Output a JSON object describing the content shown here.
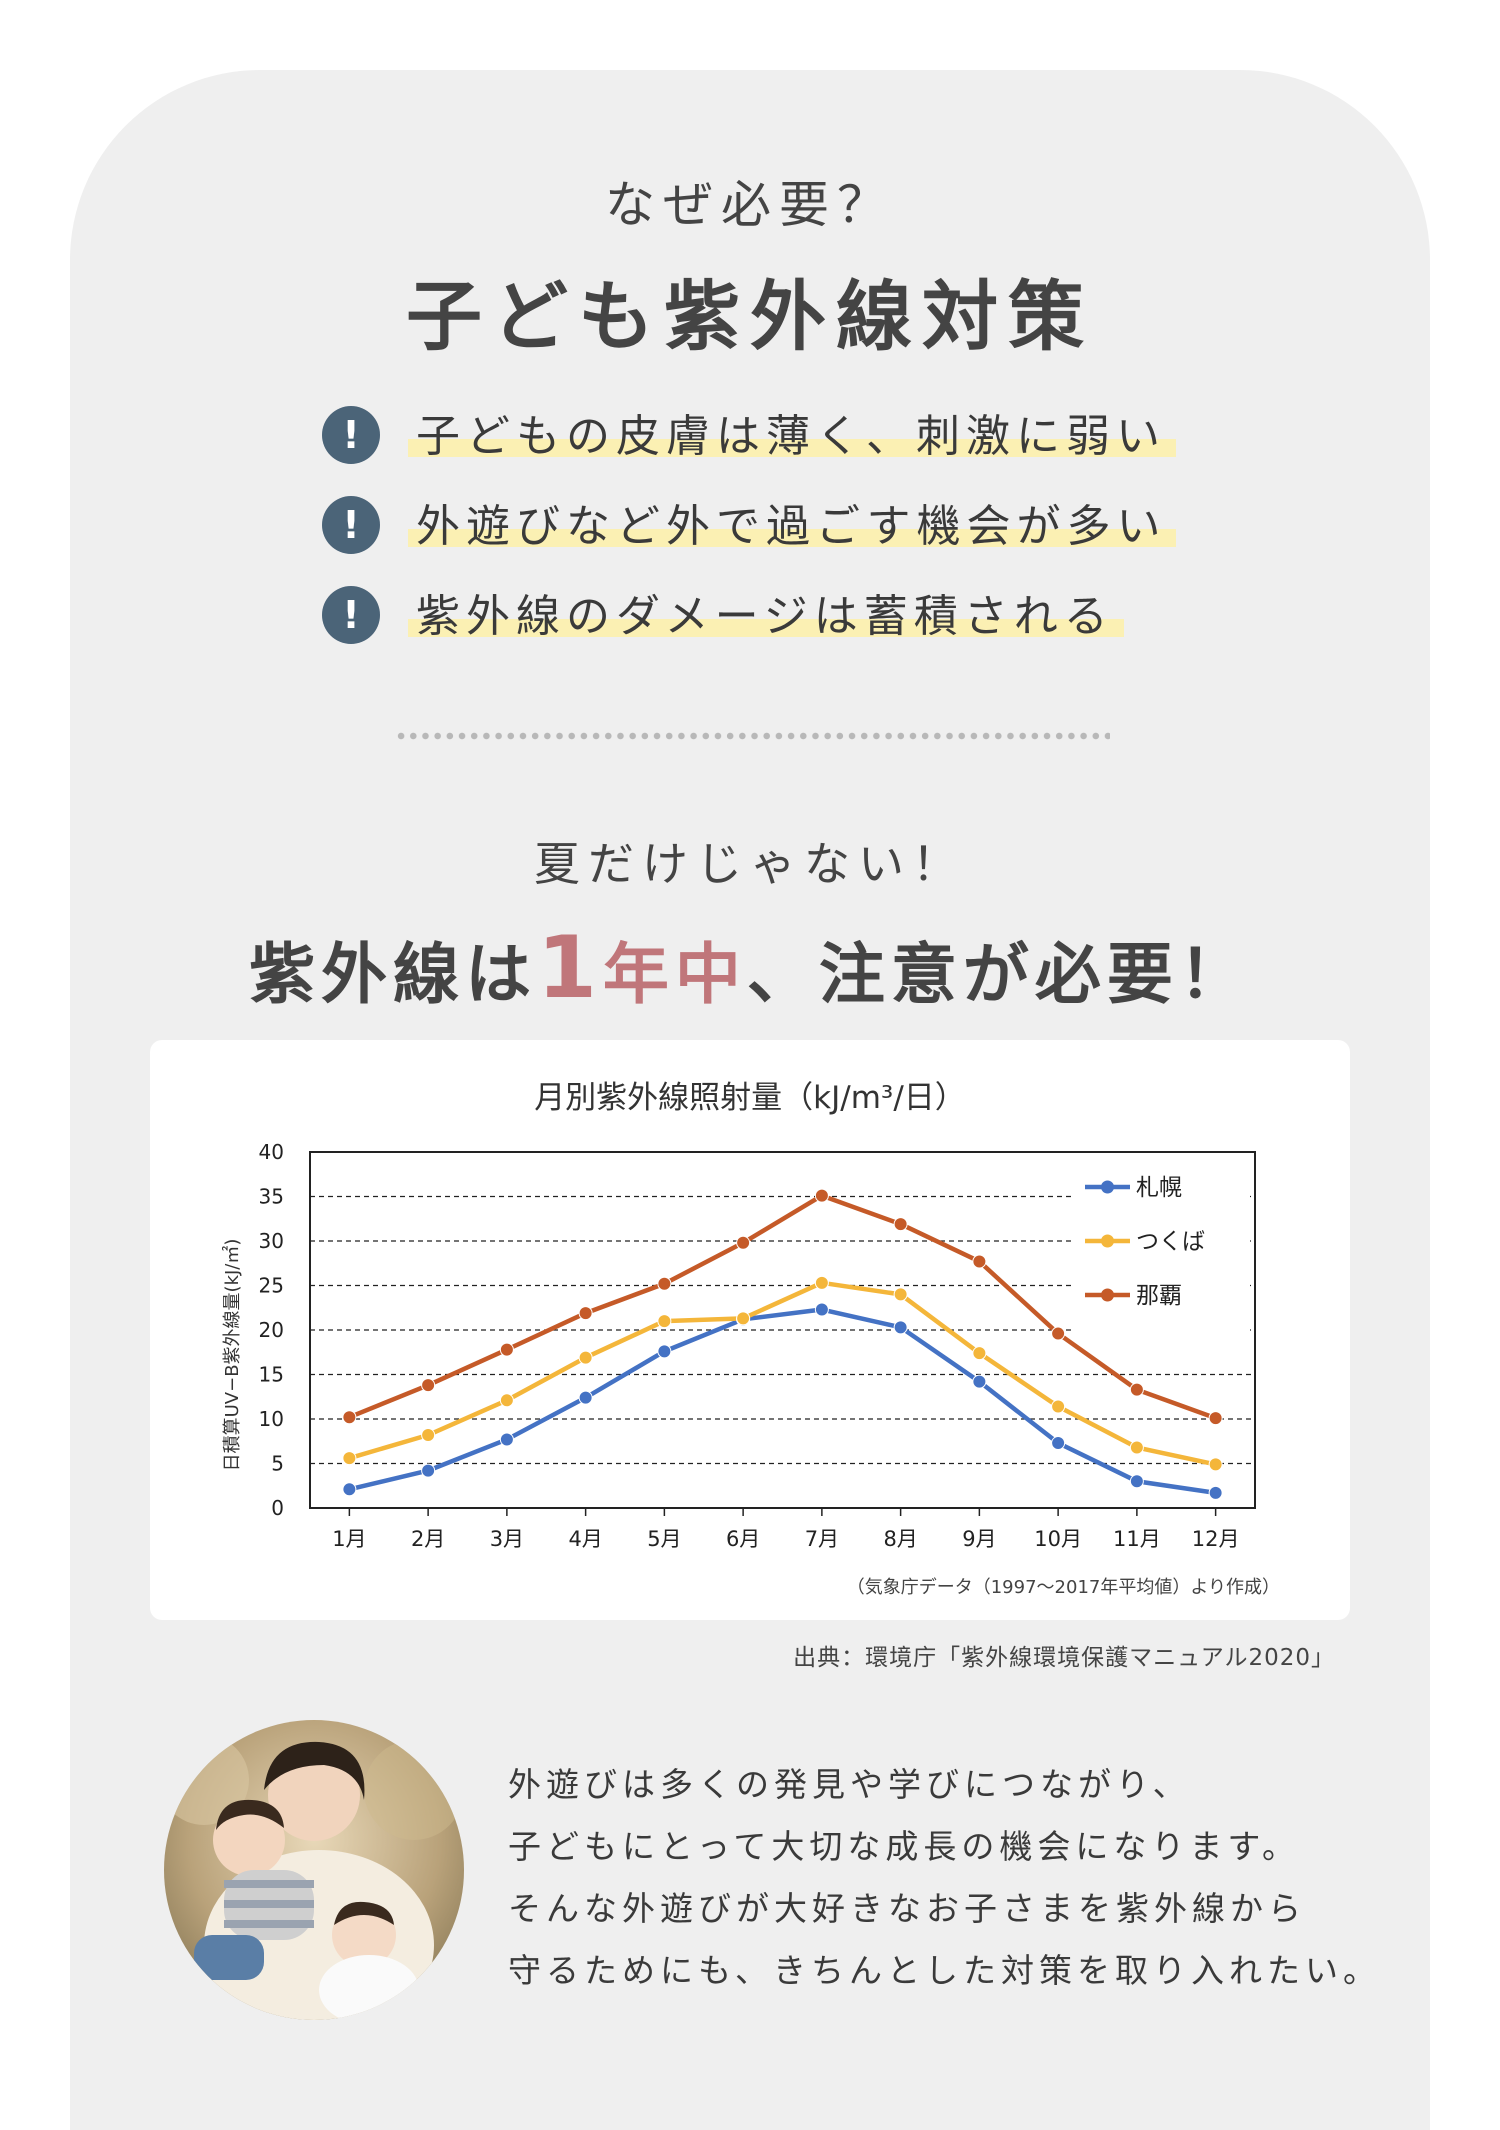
{
  "header": {
    "eyebrow": "なぜ必要？",
    "title": "子ども紫外線対策"
  },
  "points": [
    {
      "icon": "exclamation-icon",
      "text": "子どもの皮膚は薄く、刺激に弱い"
    },
    {
      "icon": "exclamation-icon",
      "text": "外遊びなど外で過ごす機会が多い"
    },
    {
      "icon": "exclamation-icon",
      "text": "紫外線のダメージは蓄積される"
    }
  ],
  "section2": {
    "eyebrow": "夏だけじゃない！",
    "title_pre": "紫外線は",
    "title_num": "1",
    "title_accent": "年中",
    "title_post": "、注意が必要！",
    "accent_color": "#c0767a"
  },
  "chart_data": {
    "type": "line",
    "title": "月別紫外線照射量（kJ/m³/日）",
    "ylabel": "日積算UV−B紫外線量(kJ/㎡)",
    "xlabel": "",
    "categories": [
      "1月",
      "2月",
      "3月",
      "4月",
      "5月",
      "6月",
      "7月",
      "8月",
      "9月",
      "10月",
      "11月",
      "12月"
    ],
    "ylim": [
      0,
      40
    ],
    "yticks": [
      0,
      5,
      10,
      15,
      20,
      25,
      30,
      35,
      40
    ],
    "grid": true,
    "legend": "top-right",
    "series": [
      {
        "name": "札幌",
        "color": "#4472c4",
        "values": [
          2.1,
          4.2,
          7.7,
          12.4,
          17.6,
          21.2,
          22.3,
          20.3,
          14.2,
          7.3,
          3.0,
          1.7
        ]
      },
      {
        "name": "つくば",
        "color": "#f4b63a",
        "values": [
          5.6,
          8.2,
          12.1,
          16.9,
          21.0,
          21.3,
          25.3,
          24.0,
          17.4,
          11.4,
          6.8,
          4.9
        ]
      },
      {
        "name": "那覇",
        "color": "#c55a28",
        "values": [
          10.2,
          13.8,
          17.8,
          21.9,
          25.2,
          29.8,
          35.1,
          31.9,
          27.7,
          19.6,
          13.3,
          10.1
        ]
      }
    ],
    "note": "（気象庁データ（1997～2017年平均値）より作成）"
  },
  "source": "出典：環境庁「紫外線環境保護マニュアル2020」",
  "body_lines": [
    "外遊びは多くの発見や学びにつながり、",
    "子どもにとって大切な成長の機会になります。",
    "そんな外遊びが大好きなお子さまを紫外線から",
    "守るためにも、きちんとした対策を取り入れたい。"
  ]
}
